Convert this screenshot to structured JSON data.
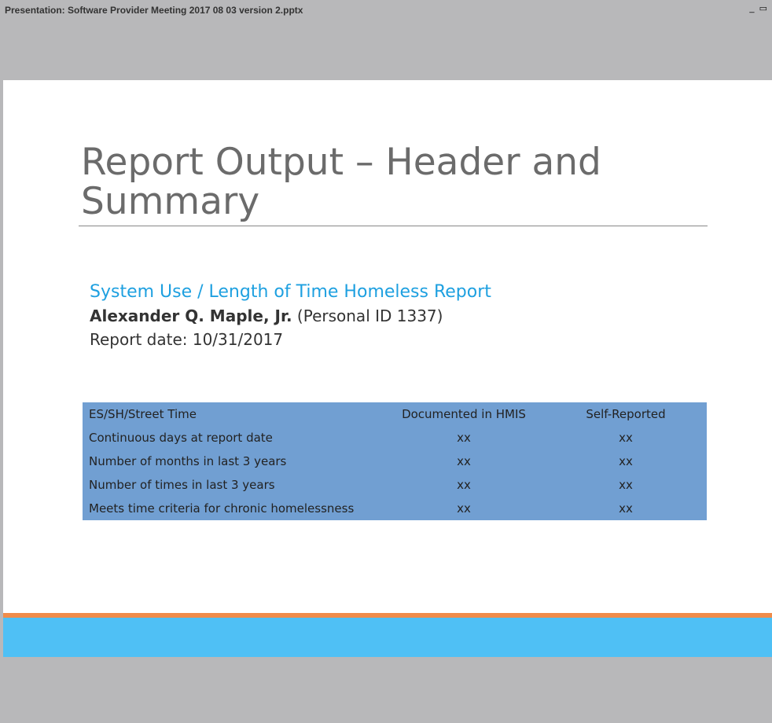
{
  "window": {
    "title": "Presentation: Software Provider Meeting 2017 08 03 version 2.pptx"
  },
  "slide": {
    "title": "Report Output – Header and Summary",
    "report_title": "System Use / Length of Time Homeless Report",
    "client_name": "Alexander Q. Maple, Jr.",
    "client_id": "(Personal ID 1337)",
    "report_date": "Report date:  10/31/2017",
    "table": {
      "header": [
        "ES/SH/Street Time",
        "Documented in HMIS",
        "Self-Reported"
      ],
      "rows": [
        [
          "Continuous days at report date",
          "xx",
          "xx"
        ],
        [
          "Number of months in last 3 years",
          "xx",
          "xx"
        ],
        [
          "Number of times in last 3 years",
          "xx",
          "xx"
        ],
        [
          "Meets time criteria for chronic homelessness",
          "xx",
          "xx"
        ]
      ]
    }
  }
}
